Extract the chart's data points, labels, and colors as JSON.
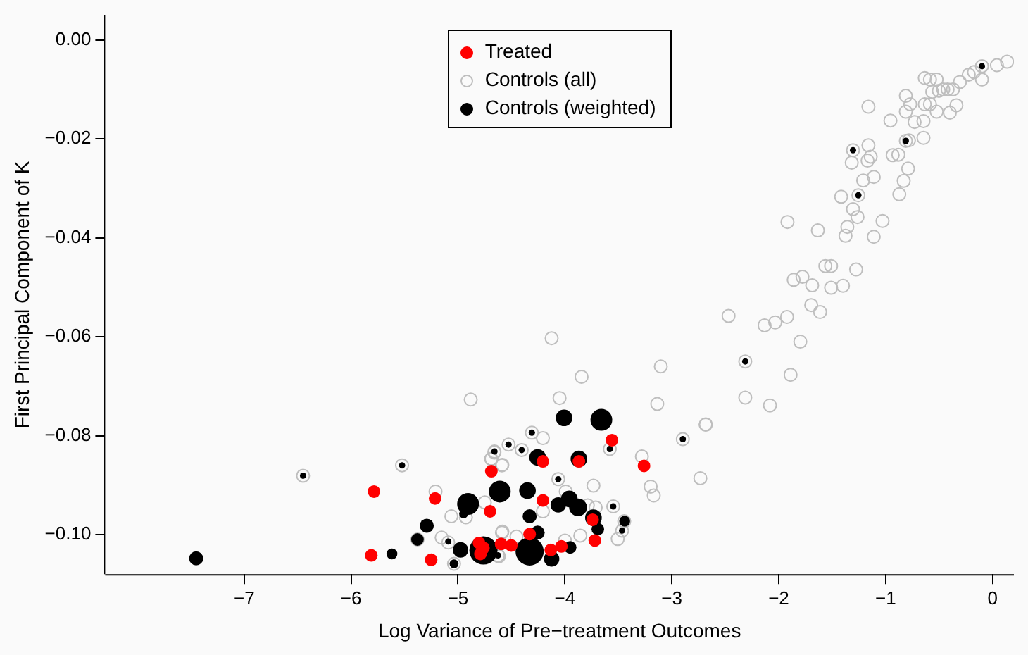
{
  "chart_data": {
    "type": "scatter",
    "xlabel": "Log Variance of Pre−treatment Outcomes",
    "ylabel": "First Principal Component of K",
    "xlim": [
      -8.3,
      0.2
    ],
    "ylim": [
      -0.108,
      0.005
    ],
    "xticks": [
      {
        "value": -7,
        "label": "−7"
      },
      {
        "value": -6,
        "label": "−6"
      },
      {
        "value": -5,
        "label": "−5"
      },
      {
        "value": -4,
        "label": "−4"
      },
      {
        "value": -3,
        "label": "−3"
      },
      {
        "value": -2,
        "label": "−2"
      },
      {
        "value": -1,
        "label": "−1"
      },
      0
    ],
    "yticks": [
      {
        "value": -0.1,
        "label": "−0.10"
      },
      {
        "value": -0.08,
        "label": "−0.08"
      },
      {
        "value": -0.06,
        "label": "−0.06"
      },
      {
        "value": -0.04,
        "label": "−0.04"
      },
      {
        "value": -0.02,
        "label": "−0.02"
      },
      {
        "value": 0,
        "label": "0.00"
      }
    ],
    "grid": false,
    "legend": "top",
    "marker": "circle",
    "series": [
      {
        "name": "Treated",
        "color": "#ff0000",
        "x": [
          -3.56,
          -3.26,
          -4.206,
          -3.869,
          -4.688,
          -4.7,
          -4.206,
          -3.741,
          -3.72,
          -4.33,
          -4.597,
          -4.502,
          -4.132,
          -4.033,
          -5.786,
          -5.214,
          -5.811,
          -5.251,
          -4.803,
          -4.762,
          -4.79
        ],
        "values": [
          -0.0809,
          -0.0861,
          -0.0852,
          -0.0852,
          -0.0872,
          -0.0953,
          -0.0931,
          -0.097,
          -0.1012,
          -0.0999,
          -0.1019,
          -0.1022,
          -0.1031,
          -0.1024,
          -0.0913,
          -0.0927,
          -0.1042,
          -0.1051,
          -0.1017,
          -0.1027,
          -0.1039
        ]
      },
      {
        "name": "Controls (all)",
        "color": "#bebebe",
        "x": [
          0.136,
          0.041,
          -0.099,
          -0.099,
          -0.173,
          -0.222,
          -0.305,
          -0.37,
          -0.42,
          -0.461,
          -0.523,
          -0.585,
          -0.634,
          -0.564,
          -0.502,
          -0.585,
          -0.634,
          -0.523,
          -0.399,
          -0.338,
          -0.811,
          -0.77,
          -0.811,
          -0.955,
          -0.729,
          -0.646,
          -0.646,
          -0.811,
          -0.782,
          -1.161,
          -1.305,
          -1.161,
          -1.14,
          -1.317,
          -1.169,
          -0.934,
          -0.881,
          -0.79,
          -0.831,
          -0.872,
          -1.111,
          -1.21,
          -1.255,
          -1.416,
          -1.305,
          -1.263,
          -1.029,
          -1.111,
          -1.358,
          -1.375,
          -1.918,
          -1.634,
          -1.564,
          -1.51,
          -1.276,
          -1.86,
          -1.778,
          -1.687,
          -1.51,
          -1.399,
          -1.696,
          -1.613,
          -2.469,
          -2.132,
          -2.033,
          -1.922,
          -1.798,
          -2.313,
          -1.889,
          -2.313,
          -2.082,
          -2.683,
          -3.844,
          -3.103,
          -4.05,
          -3.136,
          -2.683,
          -2.897,
          -3.58,
          -3.28,
          -3.198,
          -3.169,
          -2.733,
          -3.733,
          -3.548,
          -3.445,
          -3.465,
          -3.506,
          -4.206,
          -4.309,
          -4.404,
          -4.527,
          -4.659,
          -4.69,
          -4.585,
          -4.062,
          -3.992,
          -3.786,
          -3.712,
          -4.206,
          -4.585,
          -4.453,
          -4.0,
          -3.856,
          -4.618,
          -4.881,
          -6.449,
          -5.523,
          -5.21,
          -4.749,
          -4.659,
          -4.687,
          -4.589,
          -5.062,
          -4.926,
          -5.153,
          -5.091,
          -5.379,
          -5.037,
          -4.589,
          -4.626,
          -4.124
        ],
        "values": [
          -0.0044,
          -0.0051,
          -0.0053,
          -0.008,
          -0.0065,
          -0.007,
          -0.0085,
          -0.01,
          -0.01,
          -0.01,
          -0.008,
          -0.008,
          -0.0077,
          -0.0105,
          -0.0103,
          -0.013,
          -0.013,
          -0.0145,
          -0.0147,
          -0.0132,
          -0.0113,
          -0.013,
          -0.0145,
          -0.0163,
          -0.0166,
          -0.0164,
          -0.0198,
          -0.0204,
          -0.0203,
          -0.0135,
          -0.0223,
          -0.0213,
          -0.0236,
          -0.0248,
          -0.0244,
          -0.0233,
          -0.0232,
          -0.026,
          -0.0285,
          -0.0312,
          -0.0277,
          -0.0284,
          -0.0314,
          -0.0317,
          -0.0342,
          -0.0358,
          -0.0366,
          -0.0398,
          -0.0378,
          -0.0396,
          -0.0368,
          -0.0385,
          -0.0457,
          -0.0457,
          -0.0464,
          -0.0485,
          -0.0479,
          -0.0496,
          -0.0501,
          -0.0497,
          -0.0536,
          -0.055,
          -0.0558,
          -0.0577,
          -0.0571,
          -0.056,
          -0.061,
          -0.065,
          -0.0677,
          -0.0723,
          -0.0739,
          -0.0777,
          -0.0681,
          -0.066,
          -0.0724,
          -0.0736,
          -0.0778,
          -0.0807,
          -0.0827,
          -0.0842,
          -0.0903,
          -0.0921,
          -0.0886,
          -0.0901,
          -0.0943,
          -0.0973,
          -0.0992,
          -0.1009,
          -0.0805,
          -0.0794,
          -0.0829,
          -0.0818,
          -0.0832,
          -0.0847,
          -0.0859,
          -0.0888,
          -0.0913,
          -0.0941,
          -0.0945,
          -0.0953,
          -0.0994,
          -0.1004,
          -0.1012,
          -0.1002,
          -0.1044,
          -0.0727,
          -0.0881,
          -0.086,
          -0.0913,
          -0.0935,
          -0.0834,
          -0.0847,
          -0.086,
          -0.0963,
          -0.0965,
          -0.1006,
          -0.1016,
          -0.101,
          -0.1059,
          -0.0996,
          -0.1042,
          -0.0603
        ]
      },
      {
        "name": "Controls (weighted)",
        "type": "bubble",
        "color": "#000000",
        "x": [
          -3.659,
          -4.008,
          -4.255,
          -3.869,
          -4.609,
          -4.35,
          -3.959,
          -4.062,
          -3.877,
          -3.733,
          -4.33,
          -3.692,
          -4.255,
          -4.33,
          -4.124,
          -3.951,
          -3.441,
          -7.449,
          -6.449,
          -5.523,
          -4.906,
          -5.292,
          -5.379,
          -5.618,
          -4.976,
          -5.037,
          -4.762,
          -4.947,
          -5.091,
          -4.626,
          -4.309,
          -4.527,
          -4.659,
          -4.404,
          -3.58,
          -2.897,
          -4.062,
          -3.548,
          -3.465,
          -0.811,
          -1.305,
          -1.255,
          -2.313,
          -0.099
        ],
        "values": [
          -0.0768,
          -0.0764,
          -0.0844,
          -0.0847,
          -0.0913,
          -0.0911,
          -0.0928,
          -0.094,
          -0.0945,
          -0.0966,
          -0.0963,
          -0.0989,
          -0.0996,
          -0.1034,
          -0.1049,
          -0.1026,
          -0.0973,
          -0.1048,
          -0.0881,
          -0.086,
          -0.0938,
          -0.0982,
          -0.101,
          -0.1039,
          -0.1031,
          -0.1059,
          -0.1032,
          -0.0958,
          -0.1014,
          -0.1042,
          -0.0794,
          -0.0818,
          -0.0832,
          -0.0829,
          -0.0827,
          -0.0807,
          -0.0888,
          -0.0943,
          -0.0992,
          -0.0204,
          -0.0223,
          -0.0314,
          -0.065,
          -0.0053
        ],
        "sizes": [
          0.6,
          0.35,
          0.35,
          0.35,
          0.6,
          0.35,
          0.35,
          0.3,
          0.4,
          0.35,
          0.25,
          0.2,
          0.25,
          1,
          0.3,
          0.2,
          0.15,
          0.25,
          0.05,
          0.05,
          0.6,
          0.25,
          0.2,
          0.15,
          0.3,
          0.1,
          1,
          0.1,
          0.05,
          0.05,
          0.05,
          0.05,
          0.05,
          0.05,
          0.05,
          0.05,
          0.05,
          0.05,
          0.05,
          0.05,
          0.05,
          0.05,
          0.05,
          0.05
        ]
      }
    ]
  }
}
